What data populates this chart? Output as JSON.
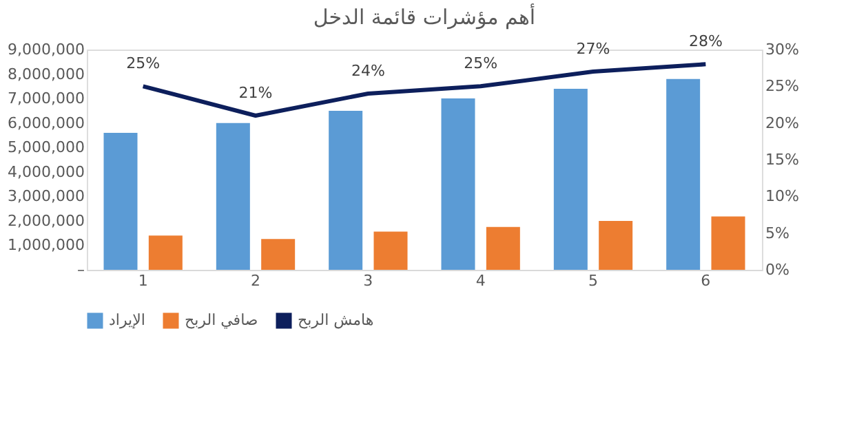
{
  "chart_data": {
    "type": "bar",
    "title": "أهم مؤشرات قائمة الدخل",
    "categories": [
      "1",
      "2",
      "3",
      "4",
      "5",
      "6"
    ],
    "series": [
      {
        "name": "الإيراد",
        "color": "#5b9bd5",
        "values": [
          5600000,
          6000000,
          6500000,
          7000000,
          7400000,
          7800000
        ]
      },
      {
        "name": "صافي الربح",
        "color": "#ed7d31",
        "values": [
          1400000,
          1260000,
          1560000,
          1750000,
          2000000,
          2180000
        ]
      },
      {
        "name": "هامش الربح",
        "color": "#0d1f5c",
        "type": "line",
        "axis": "y2",
        "values": [
          25,
          21,
          24,
          25,
          27,
          28
        ],
        "value_labels": [
          "25%",
          "21%",
          "24%",
          "25%",
          "27%",
          "28%"
        ]
      }
    ],
    "ylim": [
      0,
      9000000
    ],
    "yticks": [
      {
        "value": 0,
        "label": "–"
      },
      {
        "value": 1000000,
        "label": "1,000,000"
      },
      {
        "value": 2000000,
        "label": "2,000,000"
      },
      {
        "value": 3000000,
        "label": "3,000,000"
      },
      {
        "value": 4000000,
        "label": "4,000,000"
      },
      {
        "value": 5000000,
        "label": "5,000,000"
      },
      {
        "value": 6000000,
        "label": "6,000,000"
      },
      {
        "value": 7000000,
        "label": "7,000,000"
      },
      {
        "value": 8000000,
        "label": "8,000,000"
      },
      {
        "value": 9000000,
        "label": "9,000,000"
      }
    ],
    "y2lim": [
      0,
      30
    ],
    "y2ticks": [
      {
        "value": 0,
        "label": "0%"
      },
      {
        "value": 5,
        "label": "5%"
      },
      {
        "value": 10,
        "label": "10%"
      },
      {
        "value": 15,
        "label": "15%"
      },
      {
        "value": 20,
        "label": "20%"
      },
      {
        "value": 25,
        "label": "25%"
      },
      {
        "value": 30,
        "label": "30%"
      }
    ],
    "legend": "bottom",
    "grid": false
  }
}
